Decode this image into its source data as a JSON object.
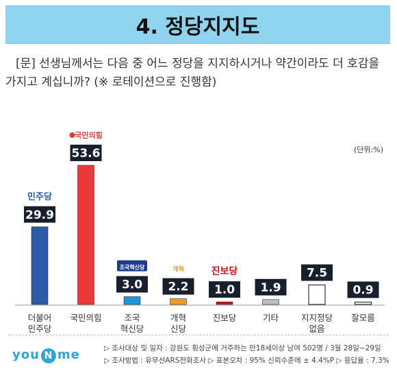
{
  "header": {
    "title": "4. 정당지지도"
  },
  "question": "[문] 선생님께서는 다음 중 어느 정당을 지지하시거나 약간이라도 더 호감을 가지고 계십니까? (※ 로테이션으로 진행함)",
  "unit_label": "(단위:%)",
  "chart_data": {
    "type": "bar",
    "categories": [
      "더불어\n민주당",
      "국민의힘",
      "조국\n혁신당",
      "개혁\n신당",
      "진보당",
      "기타",
      "지지정당\n없음",
      "잘모름"
    ],
    "values": [
      29.9,
      53.6,
      3.0,
      2.2,
      1.0,
      1.9,
      7.5,
      0.9
    ],
    "value_labels": [
      "29.9",
      "53.6",
      "3.0",
      "2.2",
      "1.0",
      "1.9",
      "7.5",
      "0.9"
    ],
    "colors": [
      "#2c5aa9",
      "#e83a3a",
      "#1f97d6",
      "#f39a1f",
      "#c5161d",
      "#bfbfbf",
      "#ffffff",
      "#ffffff"
    ],
    "party_logos": [
      "민주당",
      "국민의힘",
      "조국혁신당",
      "개혁",
      "진보당",
      "",
      "",
      ""
    ],
    "ylim": [
      0,
      60
    ]
  },
  "footer": {
    "logo_text_left": "you",
    "logo_text_mid": "N",
    "logo_text_right": "me",
    "line1": "▷ 조사대상 및 일자 : 강원도 횡성군에 거주하는 만18세이상 남여 502명  /  3월 28일~29일",
    "line2": "▷ 조사방법 : 유무선ARS전화조사   ▷ 표본오차 : 95% 신뢰수준에 ± 4.4%P   ▷ 응답율 : 7.3%"
  }
}
